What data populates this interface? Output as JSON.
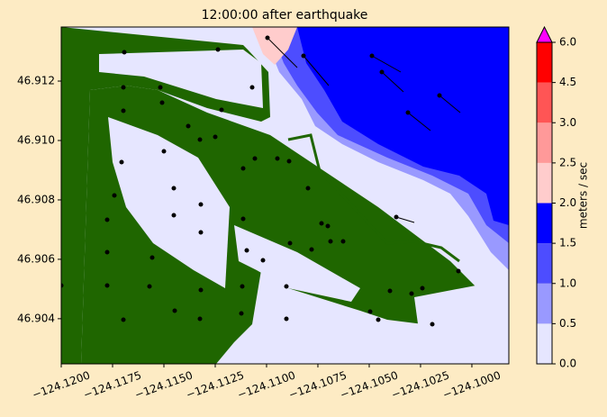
{
  "chart_data": {
    "type": "contourf",
    "title": "12:00:00 after earthquake",
    "xlim": [
      -124.12,
      -124.0982
    ],
    "ylim": [
      46.90248,
      46.91382
    ],
    "xticks": [
      {
        "value": -124.12,
        "label": "−124.1200"
      },
      {
        "value": -124.1175,
        "label": "−124.1175"
      },
      {
        "value": -124.115,
        "label": "−124.1150"
      },
      {
        "value": -124.1125,
        "label": "−124.1125"
      },
      {
        "value": -124.11,
        "label": "−124.1100"
      },
      {
        "value": -124.1075,
        "label": "−124.1075"
      },
      {
        "value": -124.105,
        "label": "−124.1050"
      },
      {
        "value": -124.1025,
        "label": "−124.1025"
      },
      {
        "value": -124.1,
        "label": "−124.1000"
      }
    ],
    "yticks": [
      46.904,
      46.906,
      46.908,
      {
        "value": 46.91,
        "label": "46.910"
      },
      46.912
    ],
    "colorbar": {
      "label": "meters / sec",
      "ticks": [
        {
          "value": 0,
          "label": "0.0"
        },
        {
          "value": 0.5,
          "label": "0.5"
        },
        {
          "value": 1,
          "label": "1.0"
        },
        {
          "value": 1.5,
          "label": "1.5"
        },
        {
          "value": 2,
          "label": "2.0"
        },
        {
          "value": 2.5,
          "label": "2.5"
        },
        {
          "value": 3,
          "label": "3.0"
        },
        {
          "value": 4.5,
          "label": "4.5"
        },
        {
          "value": 6,
          "label": "6.0"
        }
      ],
      "colors": [
        "#e6e6ff",
        "#9999ff",
        "#4d4dff",
        "#0000ff",
        "#ffcccc",
        "#ff9999",
        "#ff5555",
        "#ff0000"
      ],
      "extend_color": "#ff00ff"
    }
  }
}
